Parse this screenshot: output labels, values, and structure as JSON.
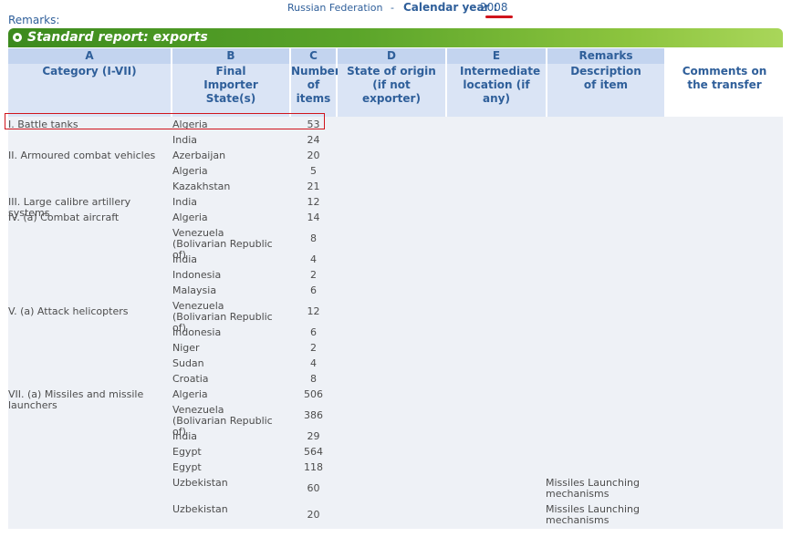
{
  "header": {
    "country": "Russian Federation",
    "separator": "-",
    "calendar_label": "Calendar year :",
    "year": "2008",
    "remarks_label": "Remarks:"
  },
  "banner_title": "Standard report: exports",
  "columns": [
    {
      "letter": "A",
      "sub": "Category (I-VII)"
    },
    {
      "letter": "B",
      "sub": "Final Importer State(s)"
    },
    {
      "letter": "C",
      "sub": "Number of items"
    },
    {
      "letter": "D",
      "sub": "State of origin (if not exporter)"
    },
    {
      "letter": "E",
      "sub": "Intermediate location (if any)"
    },
    {
      "letter": "Remarks",
      "sub": "Description of item"
    },
    {
      "letter": "",
      "sub": "Comments on the transfer"
    }
  ],
  "rows": [
    {
      "category": "I. Battle tanks",
      "importer": "Algeria",
      "items": "53",
      "description": ""
    },
    {
      "category": "",
      "importer": "India",
      "items": "24",
      "description": ""
    },
    {
      "category": "II. Armoured combat vehicles",
      "importer": "Azerbaijan",
      "items": "20",
      "description": ""
    },
    {
      "category": "",
      "importer": "Algeria",
      "items": "5",
      "description": ""
    },
    {
      "category": "",
      "importer": "Kazakhstan",
      "items": "21",
      "description": ""
    },
    {
      "category": "III. Large calibre artillery systems",
      "importer": "India",
      "items": "12",
      "description": ""
    },
    {
      "category": "IV. (a) Combat aircraft",
      "importer": "Algeria",
      "items": "14",
      "description": ""
    },
    {
      "category": "",
      "importer": "Venezuela (Bolivarian Republic of)",
      "items": "8",
      "description": ""
    },
    {
      "category": "",
      "importer": "India",
      "items": "4",
      "description": ""
    },
    {
      "category": "",
      "importer": "Indonesia",
      "items": "2",
      "description": ""
    },
    {
      "category": "",
      "importer": "Malaysia",
      "items": "6",
      "description": ""
    },
    {
      "category": "V. (a) Attack helicopters",
      "importer": "Venezuela (Bolivarian Republic of)",
      "items": "12",
      "description": ""
    },
    {
      "category": "",
      "importer": "Indonesia",
      "items": "6",
      "description": ""
    },
    {
      "category": "",
      "importer": "Niger",
      "items": "2",
      "description": ""
    },
    {
      "category": "",
      "importer": "Sudan",
      "items": "4",
      "description": ""
    },
    {
      "category": "",
      "importer": "Croatia",
      "items": "8",
      "description": ""
    },
    {
      "category": "VII. (a) Missiles and missile launchers",
      "importer": "Algeria",
      "items": "506",
      "description": ""
    },
    {
      "category": "",
      "importer": "Venezuela (Bolivarian Republic of)",
      "items": "386",
      "description": ""
    },
    {
      "category": "",
      "importer": "India",
      "items": "29",
      "description": ""
    },
    {
      "category": "",
      "importer": "Egypt",
      "items": "564",
      "description": ""
    },
    {
      "category": "",
      "importer": "Egypt",
      "items": "118",
      "description": ""
    },
    {
      "category": "",
      "importer": "Uzbekistan",
      "items": "60",
      "description": "Missiles Launching mechanisms"
    },
    {
      "category": "",
      "importer": "Uzbekistan",
      "items": "20",
      "description": "Missiles Launching mechanisms"
    }
  ]
}
